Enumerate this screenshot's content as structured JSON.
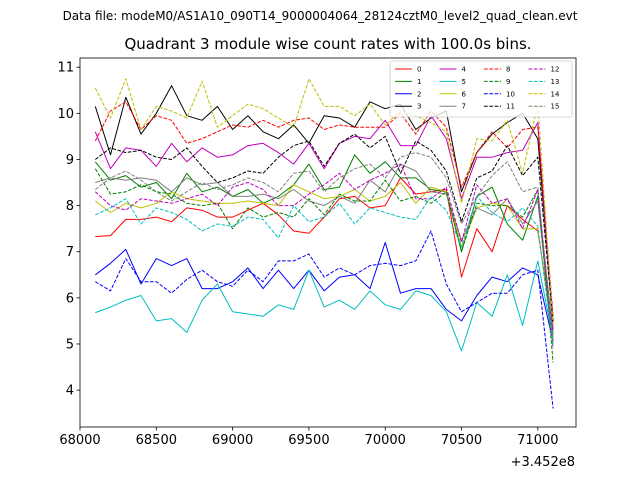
{
  "chart_data": {
    "type": "line",
    "suptitle": "Data file: modeM0/AS1A10_090T14_9000004064_28124cztM0_level2_quad_clean.evt",
    "title": "Quadrant 3 module wise count rates with 100.0s bins.",
    "xlabel": "",
    "ylabel": "",
    "x_offset_label": "+3.452e8",
    "xlim": [
      68000,
      71250
    ],
    "ylim": [
      3.2,
      11.2
    ],
    "x_ticks": [
      68000,
      68500,
      69000,
      69500,
      70000,
      70500,
      71000
    ],
    "x_tick_labels": [
      "68000",
      "68500",
      "69000",
      "69500",
      "70000",
      "70500",
      "71000"
    ],
    "y_ticks": [
      4,
      5,
      6,
      7,
      8,
      9,
      10,
      11
    ],
    "y_tick_labels": [
      "4",
      "5",
      "6",
      "7",
      "8",
      "9",
      "10",
      "11"
    ],
    "grid": false,
    "legend_position": "top-right",
    "legend_columns": 4,
    "x": [
      68100,
      68200,
      68300,
      68400,
      68500,
      68600,
      68700,
      68800,
      68900,
      69000,
      69100,
      69200,
      69300,
      69400,
      69500,
      69600,
      69700,
      69800,
      69900,
      70000,
      70100,
      70200,
      70300,
      70400,
      70500,
      70600,
      70700,
      70800,
      70900,
      71000,
      71100
    ],
    "series": [
      {
        "name": "0",
        "color": "#ff0000",
        "dash": "solid",
        "values": [
          7.33,
          7.35,
          7.7,
          7.7,
          7.75,
          7.65,
          7.95,
          7.9,
          7.75,
          7.75,
          7.9,
          8.05,
          7.8,
          7.45,
          7.4,
          7.75,
          8.15,
          8.2,
          7.95,
          8.0,
          8.6,
          8.25,
          8.3,
          8.35,
          6.45,
          7.5,
          7.0,
          8.0,
          7.7,
          7.45,
          5.3
        ]
      },
      {
        "name": "1",
        "color": "#008000",
        "dash": "solid",
        "values": [
          8.95,
          8.55,
          8.65,
          8.4,
          8.5,
          8.15,
          8.7,
          8.3,
          8.4,
          8.2,
          8.35,
          8.05,
          8.2,
          8.45,
          8.9,
          8.35,
          8.4,
          9.1,
          8.7,
          8.95,
          8.6,
          8.6,
          8.35,
          8.3,
          7.0,
          8.2,
          8.4,
          7.6,
          7.25,
          8.2,
          5.2
        ]
      },
      {
        "name": "2",
        "color": "#0000ff",
        "dash": "solid",
        "values": [
          6.5,
          6.75,
          7.05,
          6.3,
          6.85,
          6.7,
          6.85,
          6.2,
          6.2,
          6.35,
          6.65,
          6.2,
          6.6,
          6.2,
          6.6,
          6.15,
          6.45,
          6.5,
          6.2,
          7.2,
          6.1,
          6.2,
          6.2,
          5.75,
          5.5,
          6.05,
          6.45,
          6.35,
          6.65,
          6.5,
          5.05
        ]
      },
      {
        "name": "3",
        "color": "#000000",
        "dash": "solid",
        "values": [
          10.15,
          9.1,
          10.35,
          9.55,
          10.0,
          10.6,
          9.95,
          9.85,
          10.15,
          9.65,
          9.95,
          9.6,
          9.45,
          9.75,
          9.35,
          9.95,
          9.9,
          9.7,
          10.25,
          10.1,
          10.2,
          9.65,
          9.9,
          10.05,
          8.3,
          9.15,
          9.55,
          9.8,
          10.0,
          9.45,
          5.5
        ]
      },
      {
        "name": "4",
        "color": "#bf00bf",
        "dash": "solid",
        "values": [
          9.6,
          8.8,
          9.25,
          9.2,
          8.85,
          9.35,
          8.95,
          9.25,
          9.05,
          9.1,
          9.3,
          9.35,
          9.15,
          8.9,
          9.35,
          8.8,
          9.35,
          9.5,
          9.45,
          9.85,
          9.3,
          9.3,
          9.95,
          9.45,
          8.15,
          9.05,
          9.05,
          9.15,
          9.2,
          9.8,
          5.3
        ]
      },
      {
        "name": "5",
        "color": "#00bfbf",
        "dash": "solid",
        "values": [
          5.68,
          5.8,
          5.95,
          6.05,
          5.5,
          5.55,
          5.25,
          5.95,
          6.3,
          5.7,
          5.65,
          5.6,
          5.85,
          5.75,
          6.6,
          5.8,
          5.95,
          5.75,
          6.15,
          5.85,
          5.75,
          6.15,
          6.05,
          5.7,
          4.85,
          5.9,
          5.6,
          6.5,
          5.4,
          6.8,
          5.1
        ]
      },
      {
        "name": "6",
        "color": "#bfbf00",
        "dash": "solid",
        "values": [
          8.1,
          7.85,
          8.05,
          7.95,
          8.05,
          8.3,
          8.15,
          8.1,
          8.05,
          8.05,
          8.1,
          8.05,
          8.0,
          8.45,
          8.3,
          8.15,
          8.2,
          8.35,
          8.1,
          8.2,
          8.5,
          8.05,
          8.4,
          8.3,
          7.1,
          7.95,
          8.05,
          8.0,
          7.5,
          7.5,
          5.1
        ]
      },
      {
        "name": "7",
        "color": "#808080",
        "dash": "solid",
        "values": [
          8.5,
          8.6,
          8.55,
          8.6,
          8.55,
          8.3,
          8.6,
          8.45,
          8.5,
          8.2,
          8.2,
          8.25,
          8.15,
          8.35,
          8.1,
          8.0,
          8.2,
          8.05,
          8.55,
          8.3,
          8.9,
          8.75,
          8.3,
          8.25,
          7.25,
          7.95,
          7.8,
          8.15,
          7.6,
          8.1,
          5.0
        ]
      },
      {
        "name": "8",
        "color": "#ff0000",
        "dash": "dashed",
        "values": [
          9.4,
          10.05,
          10.25,
          9.65,
          9.95,
          9.85,
          9.35,
          9.45,
          9.6,
          9.75,
          9.7,
          9.85,
          9.7,
          9.85,
          9.9,
          9.65,
          9.75,
          9.7,
          9.7,
          9.7,
          10.0,
          9.55,
          10.05,
          9.7,
          8.4,
          9.15,
          9.6,
          9.25,
          9.65,
          9.7,
          5.6
        ]
      },
      {
        "name": "9",
        "color": "#008000",
        "dash": "dashed",
        "values": [
          8.8,
          8.25,
          8.3,
          8.45,
          8.3,
          8.25,
          8.05,
          8.0,
          8.05,
          7.5,
          7.95,
          7.75,
          7.85,
          7.75,
          8.15,
          7.8,
          8.25,
          8.1,
          8.1,
          8.55,
          8.1,
          8.2,
          8.05,
          8.3,
          7.0,
          8.05,
          8.0,
          8.0,
          7.75,
          8.35,
          4.6
        ]
      },
      {
        "name": "10",
        "color": "#0000ff",
        "dash": "dashed",
        "values": [
          6.35,
          6.15,
          6.85,
          6.35,
          6.35,
          6.1,
          6.4,
          6.6,
          6.35,
          6.25,
          6.6,
          6.35,
          6.8,
          6.8,
          6.95,
          6.45,
          6.65,
          6.5,
          6.7,
          6.75,
          6.7,
          6.8,
          7.45,
          6.3,
          5.7,
          5.9,
          6.1,
          6.1,
          6.5,
          6.6,
          3.6
        ]
      },
      {
        "name": "11",
        "color": "#000000",
        "dash": "dashed",
        "values": [
          9.0,
          9.25,
          9.15,
          9.2,
          9.05,
          9.0,
          9.25,
          8.85,
          8.5,
          8.6,
          8.75,
          8.7,
          9.05,
          9.3,
          9.4,
          8.85,
          9.35,
          9.55,
          9.25,
          9.5,
          8.7,
          9.4,
          9.2,
          8.75,
          7.65,
          8.6,
          8.75,
          9.3,
          8.65,
          9.05,
          5.45
        ]
      },
      {
        "name": "12",
        "color": "#bf00bf",
        "dash": "dashed",
        "values": [
          8.3,
          8.0,
          7.9,
          8.15,
          8.1,
          8.05,
          8.15,
          8.25,
          8.0,
          8.4,
          8.5,
          8.35,
          8.0,
          8.0,
          8.25,
          8.45,
          8.7,
          8.35,
          8.55,
          8.7,
          8.9,
          8.15,
          8.15,
          8.4,
          7.2,
          8.45,
          8.05,
          8.15,
          7.5,
          8.35,
          4.9
        ]
      },
      {
        "name": "13",
        "color": "#00bfbf",
        "dash": "dashed",
        "values": [
          7.8,
          7.95,
          8.15,
          7.6,
          7.95,
          7.85,
          7.7,
          7.45,
          7.6,
          7.55,
          7.75,
          7.7,
          7.3,
          8.0,
          7.65,
          7.75,
          8.05,
          7.6,
          7.95,
          7.85,
          7.75,
          7.7,
          8.2,
          7.9,
          7.1,
          8.2,
          7.85,
          7.65,
          7.95,
          7.55,
          4.95
        ]
      },
      {
        "name": "14",
        "color": "#bfbf00",
        "dash": "dashed",
        "values": [
          10.55,
          9.9,
          10.75,
          9.65,
          10.15,
          10.05,
          9.9,
          10.7,
          9.7,
          9.95,
          10.2,
          10.1,
          9.9,
          9.7,
          10.75,
          10.15,
          10.15,
          9.95,
          10.2,
          9.75,
          10.05,
          9.95,
          9.8,
          9.6,
          8.05,
          9.45,
          9.4,
          9.85,
          8.7,
          10.2,
          5.4
        ]
      },
      {
        "name": "15",
        "color": "#808080",
        "dash": "dashed",
        "values": [
          8.35,
          8.6,
          8.75,
          8.55,
          8.3,
          8.1,
          8.3,
          8.5,
          8.35,
          8.45,
          8.6,
          8.5,
          8.3,
          8.7,
          8.75,
          8.3,
          8.6,
          8.8,
          8.9,
          8.6,
          9.05,
          9.15,
          9.05,
          8.6,
          7.6,
          8.2,
          8.65,
          8.95,
          8.3,
          8.4,
          5.1
        ]
      }
    ]
  }
}
